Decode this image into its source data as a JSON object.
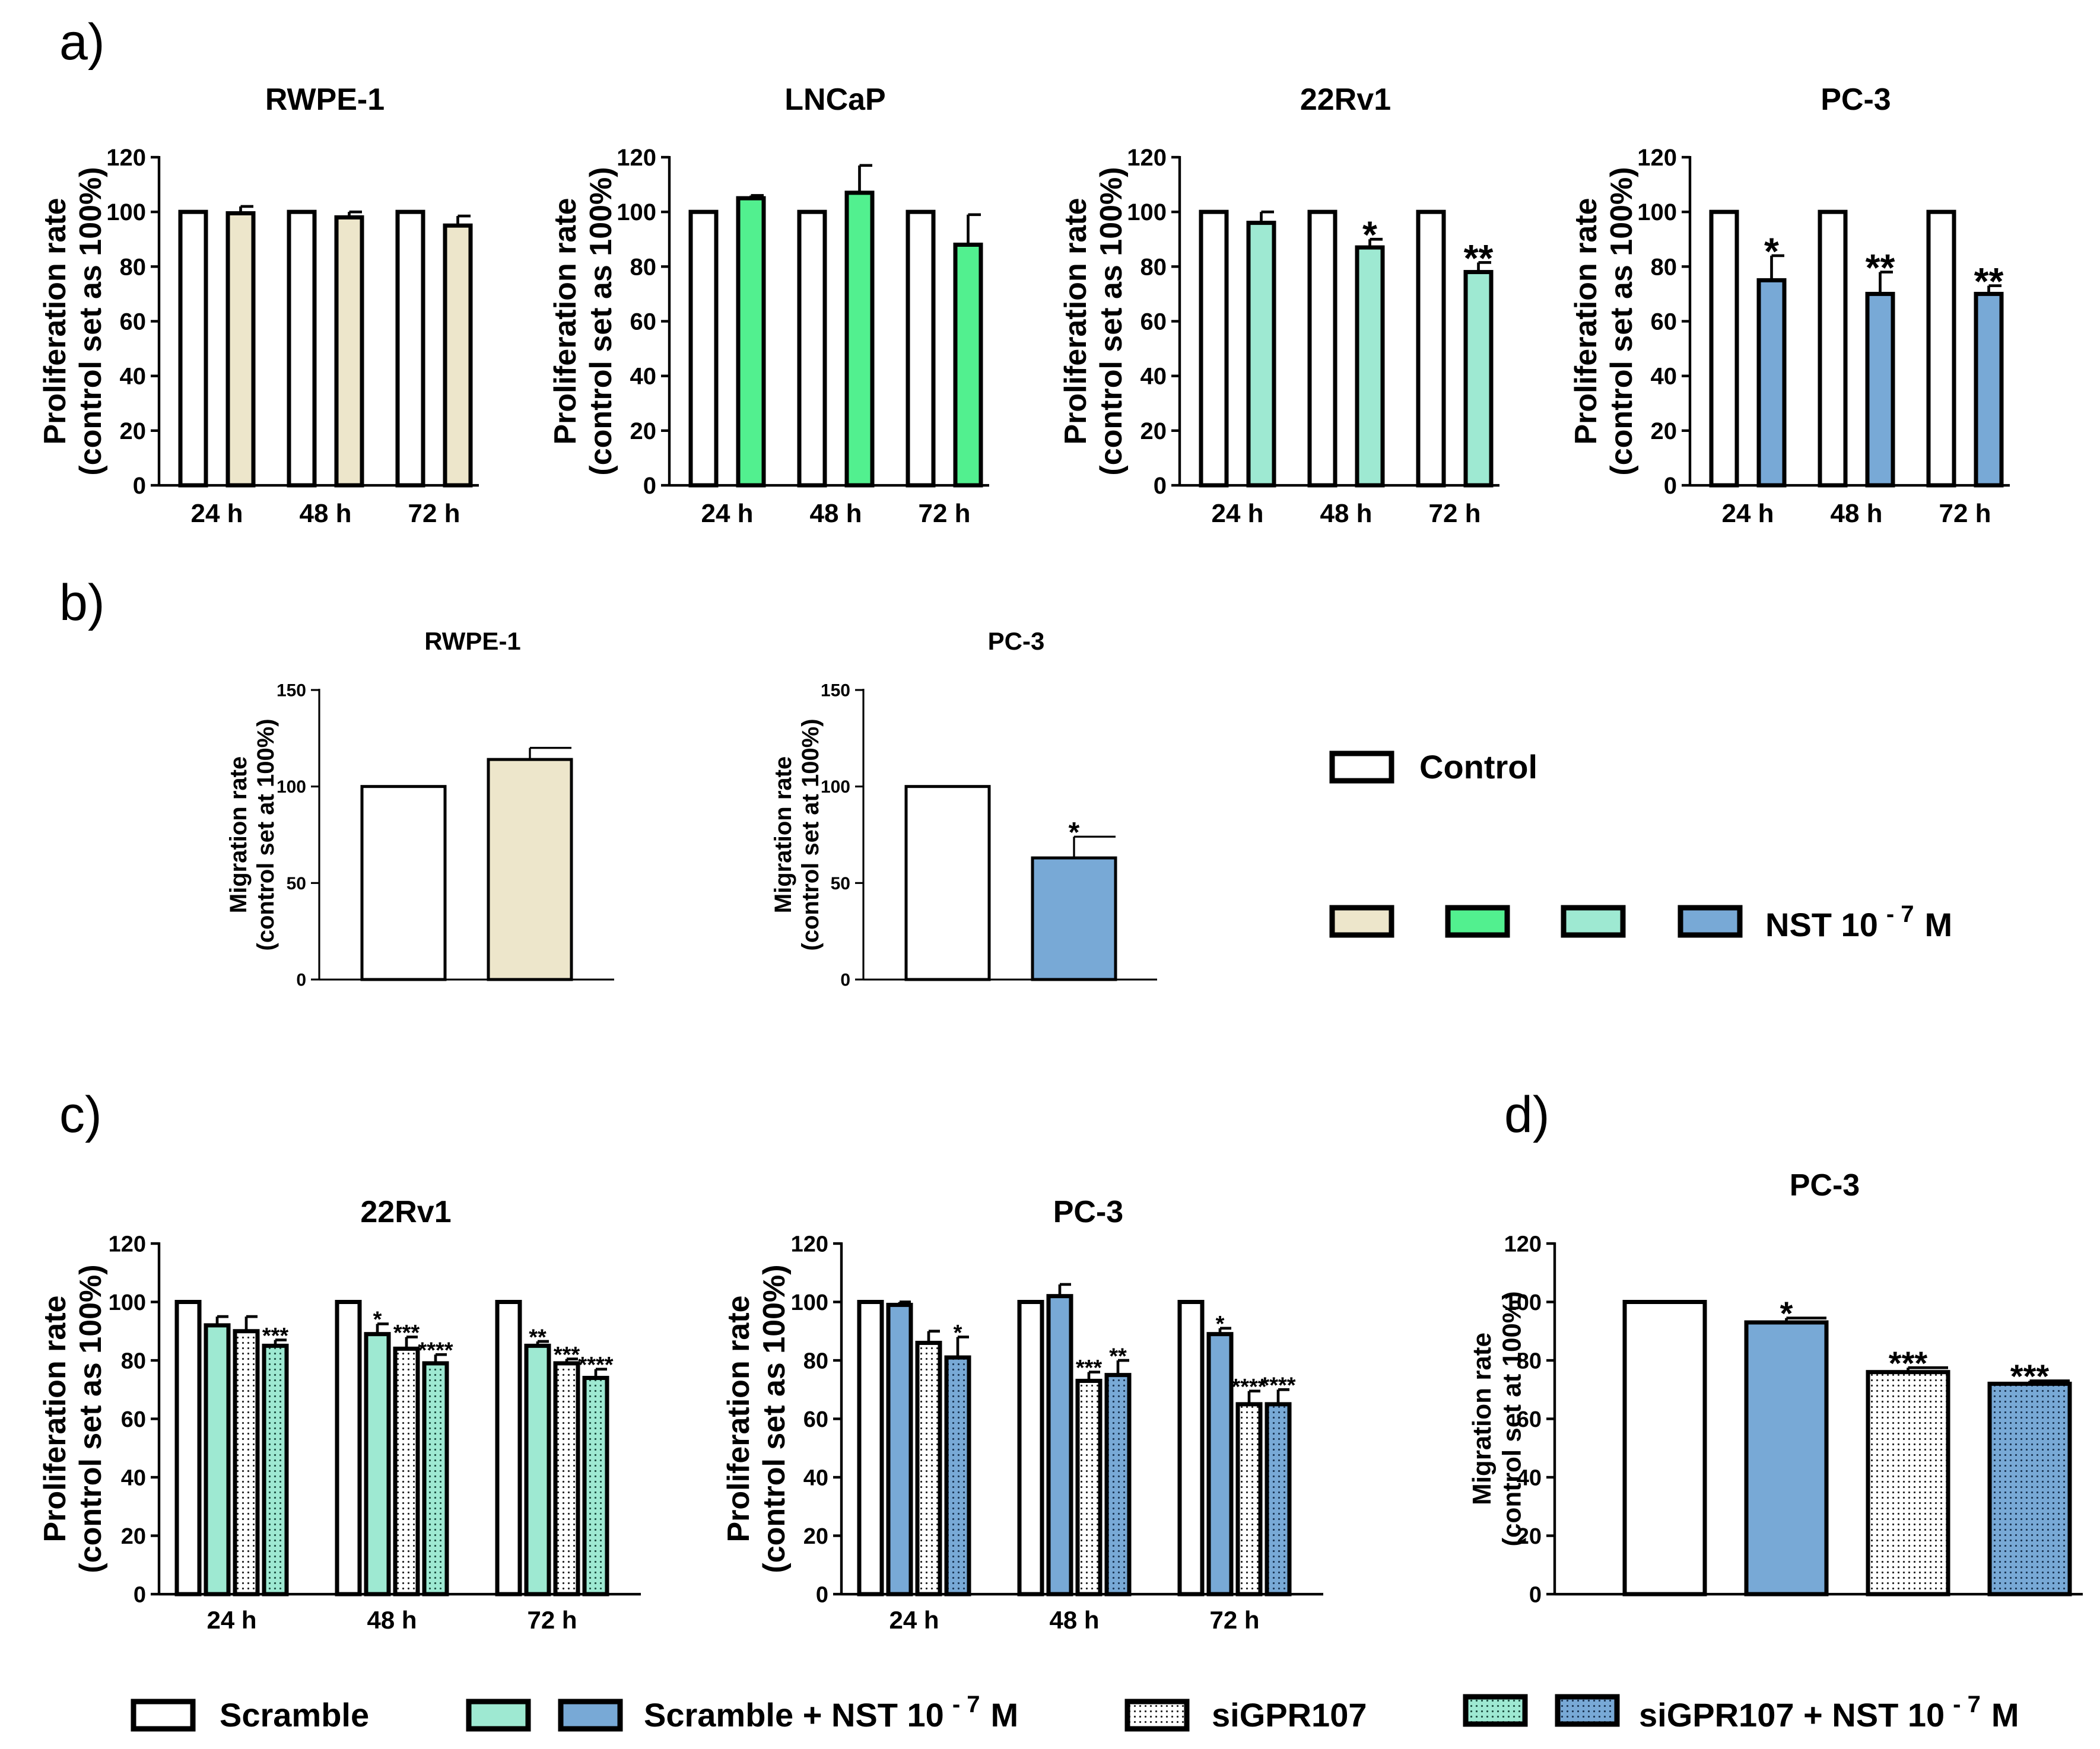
{
  "panel_labels": {
    "a": "a)",
    "b": "b)",
    "c": "c)",
    "d": "d)"
  },
  "colors": {
    "control": "#ffffff",
    "rwpe": "#ede6cb",
    "lncap": "#52f08f",
    "rv1": "#9ee9d2",
    "pc3": "#78a9d6",
    "stroke": "#000000"
  },
  "legend_b": {
    "control": "Control",
    "nst": "NST 10",
    "exp": "- 7",
    "unit": "M"
  },
  "legend_bottom": {
    "scramble": "Scramble",
    "scramble_nst": "Scramble + NST 10",
    "exp": "- 7",
    "unit": "M",
    "sigpr": "siGPR107",
    "sigpr_nst": "siGPR107 + NST 10"
  },
  "chart_data": [
    {
      "id": "a1",
      "panel": "a",
      "type": "bar",
      "title": "RWPE-1",
      "ylabel": [
        "Proliferation rate",
        "(control set as 100%)"
      ],
      "ylim": [
        0,
        120
      ],
      "yticks": [
        0,
        20,
        40,
        60,
        80,
        100,
        120
      ],
      "categories": [
        "24 h",
        "48 h",
        "72 h"
      ],
      "series": [
        {
          "name": "Control",
          "color_key": "control",
          "values": [
            100,
            100,
            100
          ],
          "errors": [
            0,
            0,
            0
          ],
          "sig": [
            "",
            "",
            ""
          ]
        },
        {
          "name": "NST 10-7 M",
          "color_key": "rwpe",
          "values": [
            99.5,
            98,
            95
          ],
          "errors": [
            2.5,
            2,
            3.5
          ],
          "sig": [
            "",
            "",
            ""
          ]
        }
      ]
    },
    {
      "id": "a2",
      "panel": "a",
      "type": "bar",
      "title": "LNCaP",
      "ylabel": [
        "Proliferation rate",
        "(control set as 100%)"
      ],
      "ylim": [
        0,
        120
      ],
      "yticks": [
        0,
        20,
        40,
        60,
        80,
        100,
        120
      ],
      "categories": [
        "24 h",
        "48 h",
        "72 h"
      ],
      "series": [
        {
          "name": "Control",
          "color_key": "control",
          "values": [
            100,
            100,
            100
          ],
          "errors": [
            0,
            0,
            0
          ],
          "sig": [
            "",
            "",
            ""
          ]
        },
        {
          "name": "NST 10-7 M",
          "color_key": "lncap",
          "values": [
            105,
            107,
            88
          ],
          "errors": [
            1,
            10,
            11
          ],
          "sig": [
            "",
            "",
            ""
          ]
        }
      ]
    },
    {
      "id": "a3",
      "panel": "a",
      "type": "bar",
      "title": "22Rv1",
      "ylabel": [
        "Proliferation rate",
        "(control set as 100%)"
      ],
      "ylim": [
        0,
        120
      ],
      "yticks": [
        0,
        20,
        40,
        60,
        80,
        100,
        120
      ],
      "categories": [
        "24 h",
        "48 h",
        "72 h"
      ],
      "series": [
        {
          "name": "Control",
          "color_key": "control",
          "values": [
            100,
            100,
            100
          ],
          "errors": [
            0,
            0,
            0
          ],
          "sig": [
            "",
            "",
            ""
          ]
        },
        {
          "name": "NST 10-7 M",
          "color_key": "rv1",
          "values": [
            96,
            87,
            78
          ],
          "errors": [
            4,
            3,
            3.5
          ],
          "sig": [
            "",
            "*",
            "**"
          ]
        }
      ]
    },
    {
      "id": "a4",
      "panel": "a",
      "type": "bar",
      "title": "PC-3",
      "ylabel": [
        "Proliferation rate",
        "(control set as 100%)"
      ],
      "ylim": [
        0,
        120
      ],
      "yticks": [
        0,
        20,
        40,
        60,
        80,
        100,
        120
      ],
      "categories": [
        "24 h",
        "48 h",
        "72 h"
      ],
      "series": [
        {
          "name": "Control",
          "color_key": "control",
          "values": [
            100,
            100,
            100
          ],
          "errors": [
            0,
            0,
            0
          ],
          "sig": [
            "",
            "",
            ""
          ]
        },
        {
          "name": "NST 10-7 M",
          "color_key": "pc3",
          "values": [
            75,
            70,
            70
          ],
          "errors": [
            9,
            8,
            3
          ],
          "sig": [
            "*",
            "**",
            "**"
          ]
        }
      ]
    },
    {
      "id": "b1",
      "panel": "b",
      "type": "bar",
      "title": "RWPE-1",
      "ylabel": [
        "Migration rate",
        "(control set at 100%)"
      ],
      "ylim": [
        0,
        150
      ],
      "yticks": [
        0,
        50,
        100,
        150
      ],
      "categories": [
        ""
      ],
      "series": [
        {
          "name": "Control",
          "color_key": "control",
          "values": [
            100
          ],
          "errors": [
            0
          ],
          "sig": [
            ""
          ]
        },
        {
          "name": "NST 10-7 M",
          "color_key": "rwpe",
          "values": [
            114
          ],
          "errors": [
            6
          ],
          "sig": [
            ""
          ]
        }
      ]
    },
    {
      "id": "b2",
      "panel": "b",
      "type": "bar",
      "title": "PC-3",
      "ylabel": [
        "Migration rate",
        "(control set at 100%)"
      ],
      "ylim": [
        0,
        150
      ],
      "yticks": [
        0,
        50,
        100,
        150
      ],
      "categories": [
        ""
      ],
      "series": [
        {
          "name": "Control",
          "color_key": "control",
          "values": [
            100
          ],
          "errors": [
            0
          ],
          "sig": [
            ""
          ]
        },
        {
          "name": "NST 10-7 M",
          "color_key": "pc3",
          "values": [
            63
          ],
          "errors": [
            11
          ],
          "sig": [
            "*"
          ]
        }
      ]
    },
    {
      "id": "c1",
      "panel": "c",
      "type": "bar",
      "title": "22Rv1",
      "ylabel": [
        "Proliferation rate",
        "(control set as 100%)"
      ],
      "ylim": [
        0,
        120
      ],
      "yticks": [
        0,
        20,
        40,
        60,
        80,
        100,
        120
      ],
      "categories": [
        "24 h",
        "48 h",
        "72 h"
      ],
      "series": [
        {
          "name": "Scramble",
          "color_key": "control",
          "dotted": false,
          "values": [
            100,
            100,
            100
          ],
          "errors": [
            0,
            0,
            0
          ],
          "sig": [
            "",
            "",
            ""
          ]
        },
        {
          "name": "Scramble + NST 10-7 M",
          "color_key": "rv1",
          "dotted": false,
          "values": [
            92,
            89,
            85
          ],
          "errors": [
            3,
            3.5,
            1.5
          ],
          "sig": [
            "",
            "*",
            "**"
          ]
        },
        {
          "name": "siGPR107",
          "color_key": "control",
          "dotted": true,
          "values": [
            90,
            84,
            79
          ],
          "errors": [
            5,
            4,
            1.5
          ],
          "sig": [
            "",
            "***",
            "***"
          ]
        },
        {
          "name": "siGPR107 + NST 10-7 M",
          "color_key": "rv1",
          "dotted": true,
          "values": [
            85,
            79,
            74
          ],
          "errors": [
            2,
            3,
            3
          ],
          "sig": [
            "***",
            "****",
            "****"
          ]
        }
      ]
    },
    {
      "id": "c2",
      "panel": "c",
      "type": "bar",
      "title": "PC-3",
      "ylabel": [
        "Proliferation rate",
        "(control set as 100%)"
      ],
      "ylim": [
        0,
        120
      ],
      "yticks": [
        0,
        20,
        40,
        60,
        80,
        100,
        120
      ],
      "categories": [
        "24 h",
        "48 h",
        "72 h"
      ],
      "series": [
        {
          "name": "Scramble",
          "color_key": "control",
          "dotted": false,
          "values": [
            100,
            100,
            100
          ],
          "errors": [
            0,
            0,
            0
          ],
          "sig": [
            "",
            "",
            ""
          ]
        },
        {
          "name": "Scramble + NST 10-7 M",
          "color_key": "pc3",
          "dotted": false,
          "values": [
            99,
            102,
            89
          ],
          "errors": [
            1,
            4,
            2
          ],
          "sig": [
            "",
            "",
            "*"
          ]
        },
        {
          "name": "siGPR107",
          "color_key": "control",
          "dotted": true,
          "values": [
            86,
            73,
            65
          ],
          "errors": [
            4,
            3,
            4.5
          ],
          "sig": [
            "",
            "***",
            "****"
          ]
        },
        {
          "name": "siGPR107 + NST 10-7 M",
          "color_key": "pc3",
          "dotted": true,
          "values": [
            81,
            75,
            65
          ],
          "errors": [
            7,
            5,
            5
          ],
          "sig": [
            "*",
            "**",
            "****"
          ]
        }
      ]
    },
    {
      "id": "d1",
      "panel": "d",
      "type": "bar",
      "title": "PC-3",
      "ylabel": [
        "Migration rate",
        "(control set at 100%)"
      ],
      "ylim": [
        0,
        120
      ],
      "yticks": [
        0,
        20,
        40,
        60,
        80,
        100,
        120
      ],
      "categories": [
        ""
      ],
      "series": [
        {
          "name": "Scramble",
          "color_key": "control",
          "dotted": false,
          "values": [
            100
          ],
          "errors": [
            0
          ],
          "sig": [
            ""
          ]
        },
        {
          "name": "Scramble + NST 10-7 M",
          "color_key": "pc3",
          "dotted": false,
          "values": [
            93
          ],
          "errors": [
            1.5
          ],
          "sig": [
            "*"
          ]
        },
        {
          "name": "siGPR107",
          "color_key": "control",
          "dotted": true,
          "values": [
            76
          ],
          "errors": [
            1.5
          ],
          "sig": [
            "***"
          ]
        },
        {
          "name": "siGPR107 + NST 10-7 M",
          "color_key": "pc3",
          "dotted": true,
          "values": [
            72
          ],
          "errors": [
            1
          ],
          "sig": [
            "***"
          ]
        }
      ]
    }
  ]
}
